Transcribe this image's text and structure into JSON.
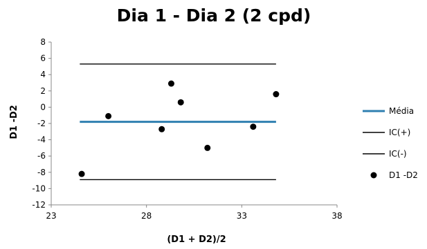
{
  "chart_data": {
    "type": "scatter",
    "title": "Dia 1 - Dia 2 (2 cpd)",
    "xlabel": "(D1 + D2)/2",
    "ylabel": "D1 -D2",
    "xlim": [
      23,
      38
    ],
    "ylim": [
      -12,
      8
    ],
    "x_ticks": [
      23,
      28,
      33,
      38
    ],
    "y_ticks": [
      8,
      6,
      4,
      2,
      0,
      -2,
      -4,
      -6,
      -8,
      -10,
      -12
    ],
    "grid": false,
    "legend_position": "right",
    "series": [
      {
        "name": "Média",
        "kind": "line",
        "color": "#2E7FB0",
        "x": [
          24.5,
          34.8
        ],
        "y": [
          -1.8,
          -1.8
        ]
      },
      {
        "name": "IC(+)",
        "kind": "line",
        "color": "#000000",
        "x": [
          24.5,
          34.8
        ],
        "y": [
          5.3,
          5.3
        ]
      },
      {
        "name": "IC(-)",
        "kind": "line",
        "color": "#000000",
        "x": [
          24.5,
          34.8
        ],
        "y": [
          -8.9,
          -8.9
        ]
      },
      {
        "name": "D1 -D2",
        "kind": "scatter",
        "color": "#000000",
        "x": [
          24.6,
          26.0,
          28.8,
          29.3,
          29.8,
          31.2,
          33.6,
          34.8
        ],
        "y": [
          -8.2,
          -1.1,
          -2.7,
          2.9,
          0.6,
          -5.0,
          -2.4,
          1.6
        ]
      }
    ]
  }
}
